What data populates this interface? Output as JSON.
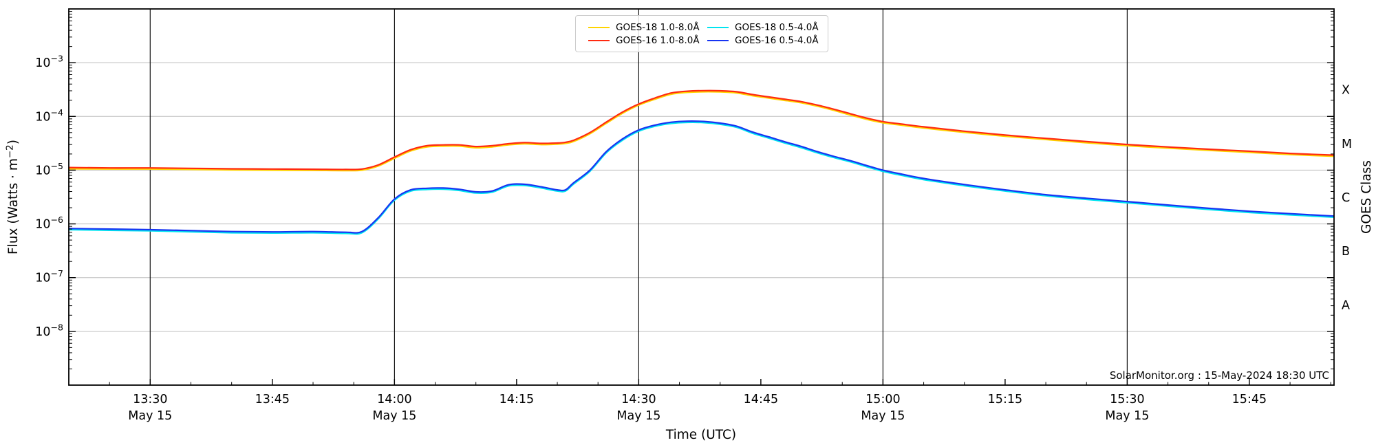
{
  "watermark": "SolarMonitor.org : 15-May-2024 18:30 UTC",
  "axes": {
    "x_label": "Time (UTC)",
    "y_label_left": {
      "pre": "Flux (Watts · m",
      "sup": "−2",
      "post": ")"
    },
    "y_label_right": "GOES Class"
  },
  "colors": {
    "goes18_long": "#ffd400",
    "goes16_long": "#ff2a10",
    "goes18_short": "#00e4f0",
    "goes16_short": "#1734f2",
    "grid_horizontal": "#bdbdbd",
    "grid_vertical": "#111111",
    "axis": "#000000",
    "text": "#000000"
  },
  "chart_data": {
    "type": "line",
    "title": "",
    "xlabel": "Time (UTC)",
    "ylabel": "Flux (Watts · m^-2)",
    "x_unit": "minutes after 13:20 UTC on 2024-05-15",
    "x_total_minutes": 155.4,
    "x_minor_step_minutes": 5,
    "ylim": [
      1e-09,
      0.01
    ],
    "y_scale": "log",
    "grid": true,
    "legend_position": "top-center",
    "x_ticks": [
      {
        "t": 10,
        "label": "13:30",
        "date": "May 15",
        "grid": true
      },
      {
        "t": 25,
        "label": "13:45"
      },
      {
        "t": 40,
        "label": "14:00",
        "date": "May 15",
        "grid": true
      },
      {
        "t": 55,
        "label": "14:15"
      },
      {
        "t": 70,
        "label": "14:30",
        "date": "May 15",
        "grid": true
      },
      {
        "t": 85,
        "label": "14:45"
      },
      {
        "t": 100,
        "label": "15:00",
        "date": "May 15",
        "grid": true
      },
      {
        "t": 115,
        "label": "15:15"
      },
      {
        "t": 130,
        "label": "15:30",
        "date": "May 15",
        "grid": true
      },
      {
        "t": 145,
        "label": "15:45"
      }
    ],
    "y_ticks_exponents": [
      -3,
      -4,
      -5,
      -6,
      -7,
      -8
    ],
    "goes_class_labels": [
      {
        "label": "X",
        "exp": -3.5
      },
      {
        "label": "M",
        "exp": -4.5
      },
      {
        "label": "C",
        "exp": -5.5
      },
      {
        "label": "B",
        "exp": -6.5
      },
      {
        "label": "A",
        "exp": -7.5
      }
    ],
    "t": [
      0,
      5,
      10,
      15,
      20,
      25,
      30,
      34,
      36,
      38,
      40,
      42,
      44,
      46,
      48,
      50,
      52,
      54,
      56,
      58,
      60,
      61,
      62,
      64,
      66,
      68,
      70,
      72,
      74,
      76,
      78,
      80,
      82,
      84,
      86,
      88,
      90,
      92,
      94,
      96,
      98,
      100,
      102,
      105,
      110,
      115,
      120,
      125,
      130,
      135,
      140,
      145,
      150,
      155.4
    ],
    "series": [
      {
        "id": "goes18-long",
        "name": "GOES-18 1.0-8.0Å",
        "color": "#ffd400",
        "values": [
          1.06e-05,
          1.05e-05,
          1.05e-05,
          1.03e-05,
          1.01e-05,
          9.98e-06,
          9.88e-06,
          9.79e-06,
          9.98e-06,
          1.19e-05,
          1.66e-05,
          2.28e-05,
          2.71e-05,
          2.8e-05,
          2.8e-05,
          2.61e-05,
          2.71e-05,
          2.95e-05,
          3.09e-05,
          2.99e-05,
          3.04e-05,
          3.14e-05,
          3.42e-05,
          4.75e-05,
          7.41e-05,
          0.000114,
          0.000162,
          0.000209,
          0.000259,
          0.00028,
          0.000287,
          0.000285,
          0.000274,
          0.000242,
          0.000219,
          0.000198,
          0.000179,
          0.000154,
          0.000129,
          0.000106,
          8.84e-05,
          7.6e-05,
          6.94e-05,
          6.08e-05,
          5.04e-05,
          4.28e-05,
          3.71e-05,
          3.23e-05,
          2.85e-05,
          2.57e-05,
          2.33e-05,
          2.14e-05,
          1.95e-05,
          1.81e-05
        ]
      },
      {
        "id": "goes16-long",
        "name": "GOES-16 1.0-8.0Å",
        "color": "#ff2a10",
        "values": [
          1.12e-05,
          1.1e-05,
          1.1e-05,
          1.08e-05,
          1.06e-05,
          1.05e-05,
          1.04e-05,
          1.03e-05,
          1.05e-05,
          1.25e-05,
          1.75e-05,
          2.4e-05,
          2.85e-05,
          2.95e-05,
          2.95e-05,
          2.75e-05,
          2.85e-05,
          3.1e-05,
          3.25e-05,
          3.15e-05,
          3.2e-05,
          3.3e-05,
          3.6e-05,
          5e-05,
          7.8e-05,
          0.00012,
          0.00017,
          0.00022,
          0.000273,
          0.000295,
          0.000302,
          0.0003,
          0.000288,
          0.000255,
          0.00023,
          0.000208,
          0.000188,
          0.000162,
          0.000136,
          0.000112,
          9.3e-05,
          8e-05,
          7.3e-05,
          6.4e-05,
          5.3e-05,
          4.5e-05,
          3.9e-05,
          3.4e-05,
          3e-05,
          2.7e-05,
          2.45e-05,
          2.25e-05,
          2.05e-05,
          1.9e-05
        ]
      },
      {
        "id": "goes18-short",
        "name": "GOES-18 0.5-4.0Å",
        "color": "#00e4f0",
        "values": [
          7.79e-07,
          7.6e-07,
          7.41e-07,
          7.13e-07,
          6.84e-07,
          6.75e-07,
          6.84e-07,
          6.65e-07,
          6.84e-07,
          1.24e-06,
          2.76e-06,
          4.09e-06,
          4.37e-06,
          4.42e-06,
          4.18e-06,
          3.75e-06,
          3.9e-06,
          5.08e-06,
          5.18e-06,
          4.66e-06,
          4.09e-06,
          4.09e-06,
          5.51e-06,
          9.5e-06,
          2.09e-05,
          3.61e-05,
          5.32e-05,
          6.56e-05,
          7.41e-05,
          7.74e-05,
          7.65e-05,
          7.13e-05,
          6.27e-05,
          4.85e-05,
          3.94e-05,
          3.18e-05,
          2.61e-05,
          2.09e-05,
          1.71e-05,
          1.43e-05,
          1.16e-05,
          9.5e-06,
          8.17e-06,
          6.65e-06,
          5.13e-06,
          4.09e-06,
          3.33e-06,
          2.85e-06,
          2.47e-06,
          2.14e-06,
          1.85e-06,
          1.63e-06,
          1.47e-06,
          1.33e-06
        ]
      },
      {
        "id": "goes16-short",
        "name": "GOES-16 0.5-4.0Å",
        "color": "#1734f2",
        "values": [
          8.2e-07,
          8e-07,
          7.8e-07,
          7.5e-07,
          7.2e-07,
          7.1e-07,
          7.2e-07,
          7e-07,
          7.2e-07,
          1.3e-06,
          2.9e-06,
          4.3e-06,
          4.6e-06,
          4.65e-06,
          4.4e-06,
          3.95e-06,
          4.1e-06,
          5.35e-06,
          5.45e-06,
          4.9e-06,
          4.3e-06,
          4.3e-06,
          5.8e-06,
          1e-05,
          2.2e-05,
          3.8e-05,
          5.6e-05,
          6.9e-05,
          7.8e-05,
          8.15e-05,
          8.05e-05,
          7.5e-05,
          6.6e-05,
          5.1e-05,
          4.15e-05,
          3.35e-05,
          2.75e-05,
          2.2e-05,
          1.8e-05,
          1.5e-05,
          1.22e-05,
          1e-05,
          8.6e-06,
          7e-06,
          5.4e-06,
          4.3e-06,
          3.5e-06,
          3e-06,
          2.6e-06,
          2.25e-06,
          1.95e-06,
          1.72e-06,
          1.55e-06,
          1.4e-06
        ]
      }
    ],
    "legend": [
      {
        "label": "GOES-18 1.0-8.0Å",
        "color": "#ffd400"
      },
      {
        "label": "GOES-18 0.5-4.0Å",
        "color": "#00e4f0"
      },
      {
        "label": "GOES-16 1.0-8.0Å",
        "color": "#ff2a10"
      },
      {
        "label": "GOES-16 0.5-4.0Å",
        "color": "#1734f2"
      }
    ]
  }
}
